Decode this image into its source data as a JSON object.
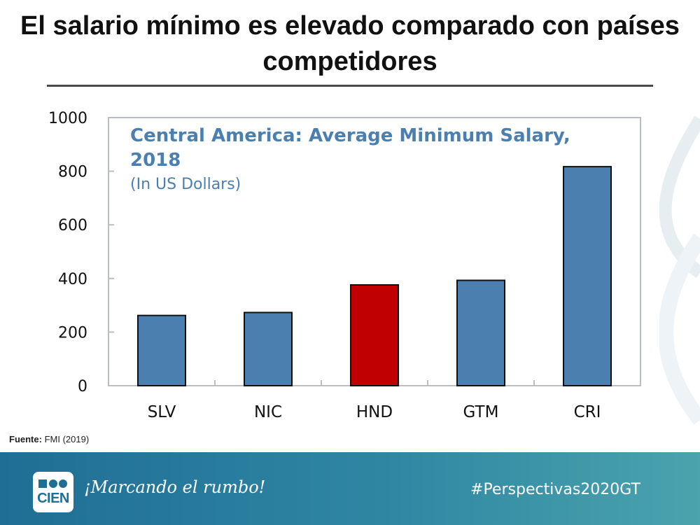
{
  "slide": {
    "title": "El salario mínimo es elevado comparado con países competidores"
  },
  "source": {
    "label": "Fuente:",
    "text": "FMI (2019)"
  },
  "footer": {
    "logo_text": "CIEN",
    "slogan": "¡Marcando el rumbo!",
    "hashtag": "#Perspectivas2020GT"
  },
  "colors": {
    "bar_default": "#4a7fb0",
    "bar_highlight": "#c00000",
    "title_blue": "#4a7fb0"
  },
  "chart_data": {
    "type": "bar",
    "title": "Central America: Average Minimum Salary, 2018",
    "subtitle": "(In US Dollars)",
    "categories": [
      "SLV",
      "NIC",
      "HND",
      "GTM",
      "CRI"
    ],
    "values": [
      262,
      273,
      376,
      393,
      817
    ],
    "highlight": "HND",
    "ylim": [
      0,
      1000
    ],
    "yticks": [
      0,
      200,
      400,
      600,
      800,
      1000
    ],
    "xlabel": "",
    "ylabel": "",
    "grid": false,
    "legend": "none"
  }
}
